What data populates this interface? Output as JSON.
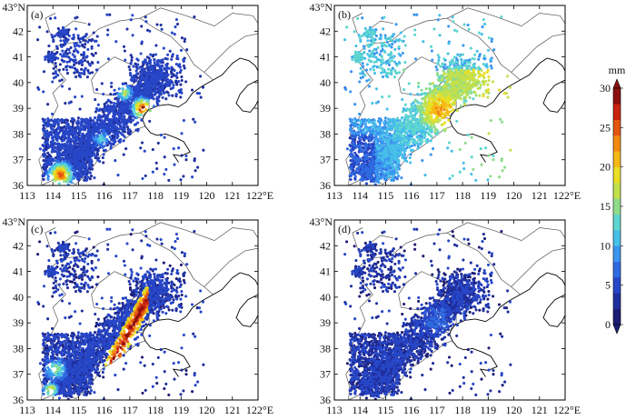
{
  "figure": {
    "lat_label_top": "43°N",
    "lon_label_right": "122°E",
    "lat_ticks": [
      "36",
      "37",
      "38",
      "39",
      "40",
      "41",
      "42"
    ],
    "lon_ticks": [
      "113",
      "114",
      "115",
      "116",
      "117",
      "118",
      "119",
      "120",
      "121"
    ],
    "lat_range": [
      36,
      43
    ],
    "lon_range": [
      113,
      122
    ]
  },
  "panels": [
    {
      "label": "(a)",
      "pattern": "a"
    },
    {
      "label": "(b)",
      "pattern": "b"
    },
    {
      "label": "(c)",
      "pattern": "c"
    },
    {
      "label": "(d)",
      "pattern": "d"
    }
  ],
  "colorbar": {
    "unit": "mm",
    "ticks": [
      "30",
      "25",
      "20",
      "15",
      "10",
      "5",
      "0"
    ],
    "min": 0,
    "max": 30,
    "colors": [
      "#1c1c74",
      "#1f2f9e",
      "#2747c8",
      "#2f6be0",
      "#3a96ef",
      "#47bfe8",
      "#5ed6cf",
      "#8fdc8a",
      "#c2e04c",
      "#e9df24",
      "#f5b915",
      "#f28a12",
      "#e45512",
      "#c8230e",
      "#8c1010"
    ]
  },
  "colors": {
    "border": "#000000",
    "province_line": "#555555",
    "coast": "#000000"
  }
}
